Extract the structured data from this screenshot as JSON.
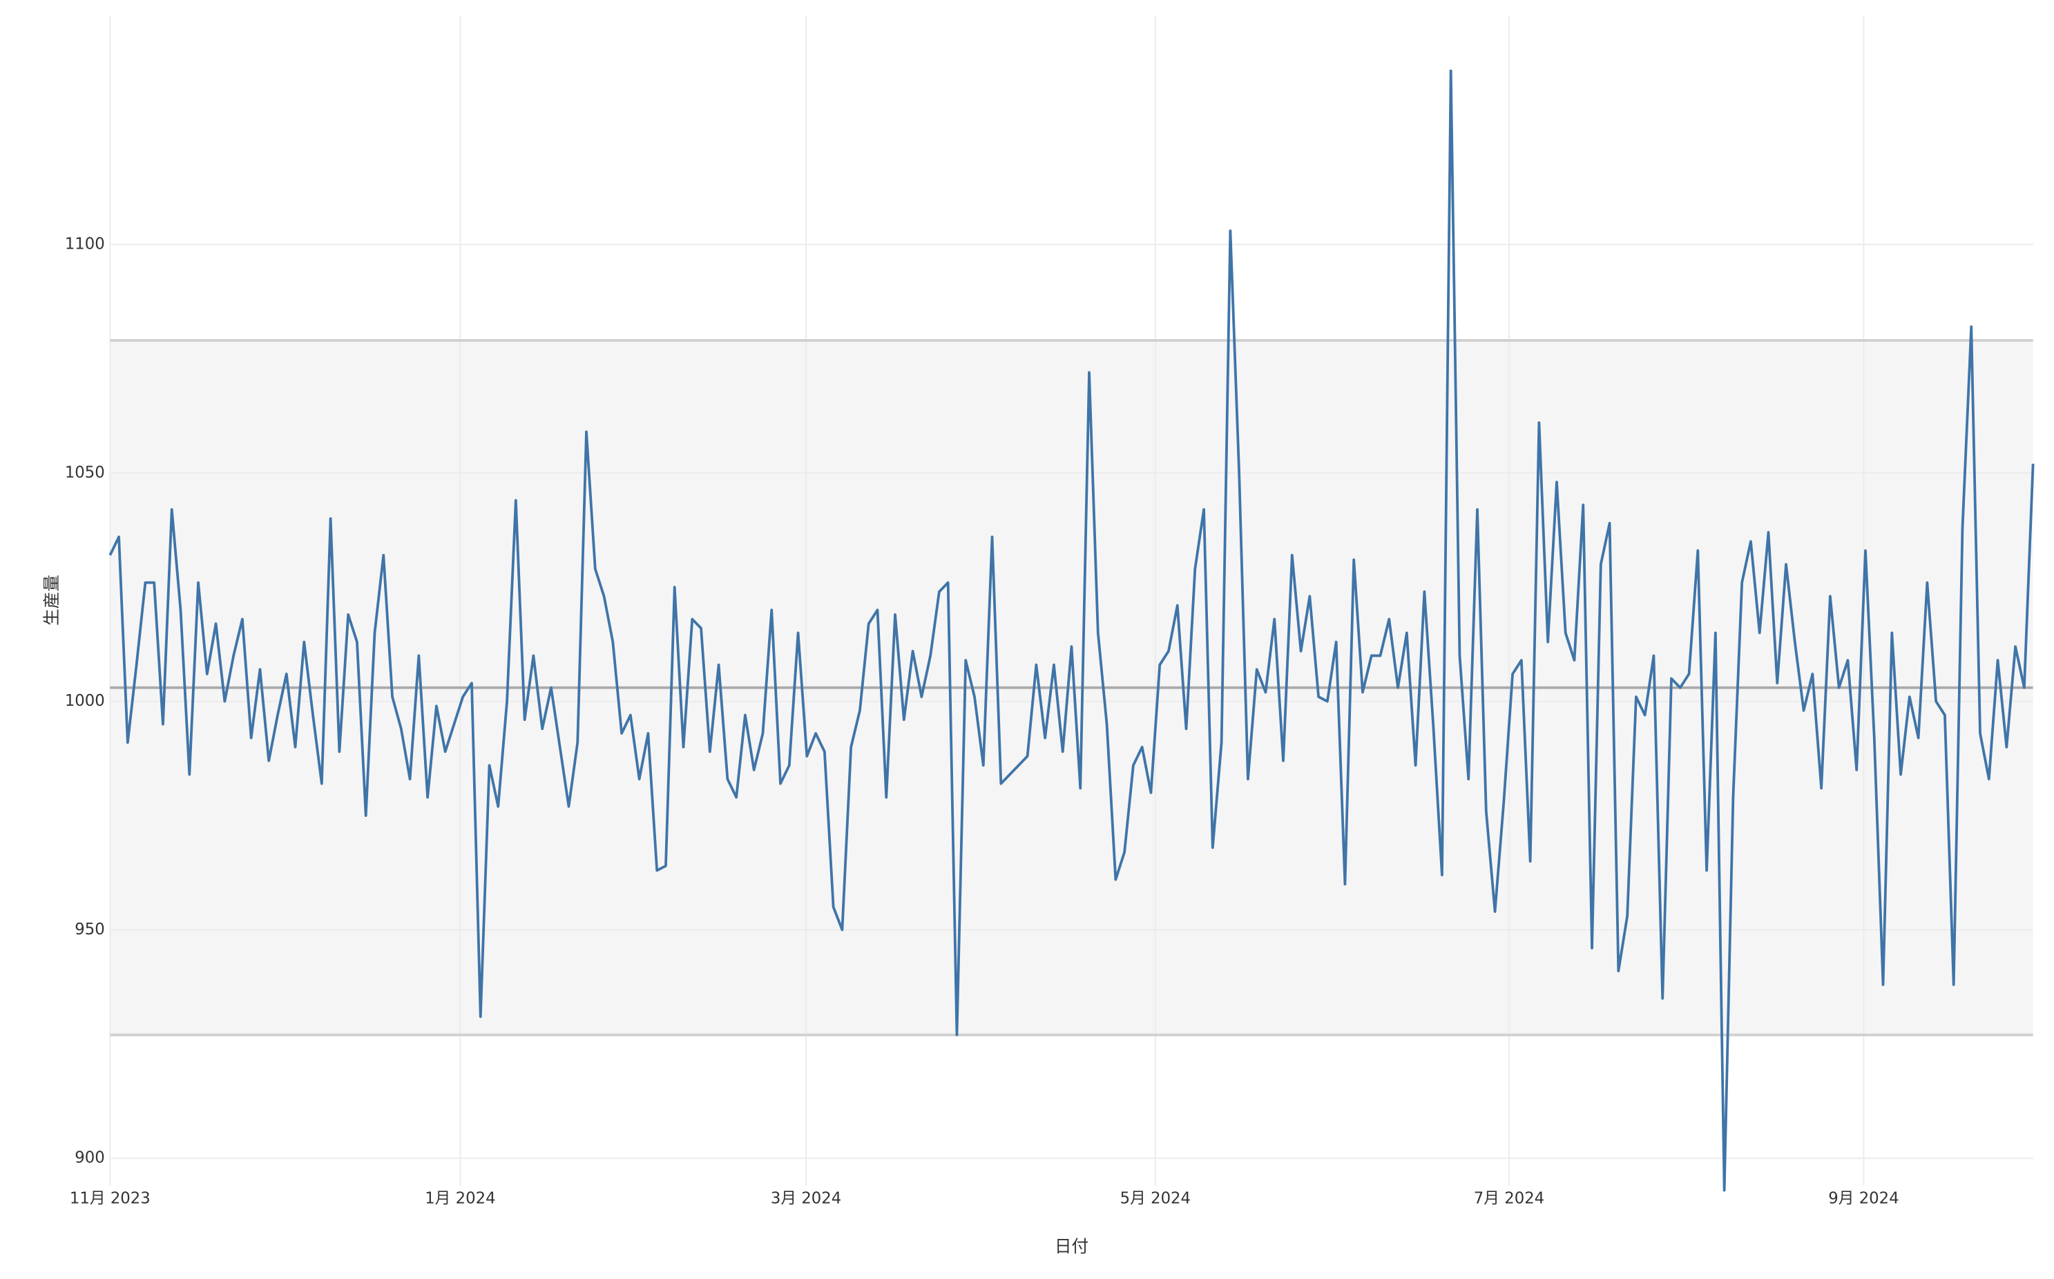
{
  "chart_data": {
    "type": "line",
    "xlabel": "日付",
    "ylabel": "生産量",
    "categories": [
      null,
      null,
      null,
      null,
      null,
      null,
      null,
      null,
      null,
      null,
      null,
      null,
      null,
      null,
      null,
      null,
      null,
      null,
      null,
      null,
      null,
      null,
      null,
      null,
      null,
      null,
      null,
      null,
      null,
      null,
      null,
      null,
      null,
      null,
      null,
      null,
      null,
      null,
      null,
      null,
      null,
      null,
      null,
      null,
      null,
      null,
      null,
      null,
      null,
      null,
      null,
      null,
      null,
      null,
      null,
      null,
      null,
      null,
      null,
      null,
      null,
      null,
      null,
      null,
      null,
      null,
      null,
      null,
      null,
      null,
      null,
      null,
      null,
      null,
      null,
      null,
      null,
      null,
      null,
      null,
      null,
      null,
      null,
      null,
      null,
      null,
      null,
      null,
      null,
      null,
      null,
      null,
      null,
      null,
      null,
      null,
      null,
      null,
      null,
      null,
      null,
      null,
      null,
      null,
      null,
      null,
      null,
      null,
      null,
      null,
      null,
      null,
      null,
      null,
      null,
      null,
      null,
      null,
      null,
      null,
      null,
      null,
      null,
      null,
      null,
      null,
      null,
      null,
      null,
      null,
      null,
      null,
      null,
      null,
      null,
      null,
      null,
      null,
      null,
      null,
      null,
      null,
      null,
      null,
      null,
      null,
      null,
      null,
      null,
      null,
      null,
      null,
      null,
      null,
      null,
      null,
      null,
      null,
      null,
      null,
      null,
      null,
      null,
      null,
      null,
      null,
      null,
      null,
      null,
      null,
      null,
      null,
      null,
      null,
      null,
      null,
      null,
      null,
      null,
      null,
      null,
      null,
      null,
      null,
      null,
      null,
      null,
      null,
      null,
      null,
      null,
      null,
      null,
      null,
      null,
      null,
      null,
      null,
      null,
      null,
      null,
      null,
      null,
      null,
      null,
      null,
      null,
      null,
      null,
      null,
      null,
      null,
      null,
      null,
      null,
      null,
      null,
      null,
      null
    ],
    "series": [
      {
        "name": "生産量",
        "color": "#3f74a8",
        "values": [
          1032,
          1036,
          991,
          1008,
          1026,
          1026,
          995,
          1042,
          1020,
          984,
          1026,
          1006,
          1017,
          1000,
          1010,
          1018,
          992,
          1007,
          987,
          997,
          1006,
          990,
          1013,
          997,
          982,
          1040,
          989,
          1019,
          1013,
          975,
          1015,
          1032,
          1001,
          994,
          983,
          1010,
          979,
          999,
          989,
          995,
          1001,
          1004,
          931,
          986,
          977,
          1000,
          1044,
          996,
          1010,
          994,
          1003,
          990,
          977,
          991,
          1059,
          1029,
          1023,
          1013,
          993,
          997,
          983,
          993,
          963,
          964,
          1025,
          990,
          1018,
          1016,
          989,
          1008,
          983,
          979,
          997,
          985,
          993,
          1020,
          982,
          986,
          1015,
          988,
          993,
          989,
          955,
          950,
          990,
          998,
          1017,
          1020,
          979,
          1019,
          996,
          1011,
          1001,
          1010,
          1024,
          1026,
          927,
          1009,
          1001,
          986,
          1036,
          982,
          984,
          986,
          988,
          1008,
          992,
          1008,
          989,
          1012,
          981,
          1072,
          1015,
          995,
          961,
          967,
          986,
          990,
          980,
          1008,
          1011,
          1021,
          994,
          1029,
          1042,
          968,
          991,
          1103,
          1050,
          983,
          1007,
          1002,
          1018,
          987,
          1032,
          1011,
          1023,
          1001,
          1000,
          1013,
          960,
          1031,
          1002,
          1010,
          1010,
          1018,
          1003,
          1015,
          986,
          1024,
          995,
          962,
          1138,
          1010,
          983,
          1042,
          976,
          954,
          978,
          1006,
          1009,
          965,
          1061,
          1013,
          1048,
          1015,
          1009,
          1043,
          946,
          1030,
          1039,
          941,
          953,
          1001,
          997,
          1010,
          935,
          1005,
          1003,
          1006,
          1033,
          963,
          1015,
          893,
          979,
          1026,
          1035,
          1015,
          1037,
          1004,
          1030,
          1013,
          998,
          1006,
          981,
          1023,
          1003,
          1009,
          985,
          1033,
          992,
          938,
          1015,
          984,
          1001,
          992,
          1026,
          1000,
          997,
          938,
          1038,
          1082,
          993,
          983,
          1009,
          990,
          1012,
          1003,
          1052
        ]
      }
    ],
    "band": {
      "lower": 927,
      "upper": 1079,
      "color": "#f5f5f5"
    },
    "mean": 1003,
    "xlim": [
      0,
      218
    ],
    "xticks": [
      {
        "value": 0,
        "label": "11月 2023"
      },
      {
        "value": 39.7,
        "label": "1月 2024"
      },
      {
        "value": 78.9,
        "label": "3月 2024"
      },
      {
        "value": 118.5,
        "label": "5月 2024"
      },
      {
        "value": 158.6,
        "label": "7月 2024"
      },
      {
        "value": 198.8,
        "label": "9月 2024"
      }
    ],
    "ylim": [
      894,
      1150
    ],
    "yticks": [
      900,
      950,
      1000,
      1050,
      1100
    ],
    "grid": true
  }
}
